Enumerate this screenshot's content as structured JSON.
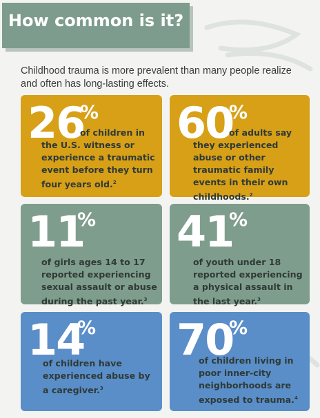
{
  "header": {
    "title": "How common is it?"
  },
  "intro": "Childhood trauma is more prevalent than many people realize and often has long-lasting effects.",
  "colors": {
    "gold": "#d7a017",
    "green": "#7f9d8c",
    "blue": "#5a8ec9",
    "header": "#7e9c8d"
  },
  "stats": [
    {
      "number": "26",
      "percent": "%",
      "text": "of children in the U.S. witness or experience a traumatic event before they turn four years old.",
      "ref": "2"
    },
    {
      "number": "60",
      "percent": "%",
      "text": "of adults say they experienced abuse or other traumatic family events in their own childhoods.",
      "ref": "2"
    },
    {
      "number": "11",
      "percent": "%",
      "text": "of girls ages 14 to 17 reported experiencing sexual assault or abuse during the past year.",
      "ref": "3"
    },
    {
      "number": "41",
      "percent": "%",
      "text": "of youth under 18 reported experiencing a physical assault in the last year.",
      "ref": "3"
    },
    {
      "number": "14",
      "percent": "%",
      "text": "of children have experienced abuse by a caregiver.",
      "ref": "3"
    },
    {
      "number": "70",
      "percent": "%",
      "text": "of children living in poor inner-city neighborhoods are exposed to trauma.",
      "ref": "4"
    }
  ]
}
